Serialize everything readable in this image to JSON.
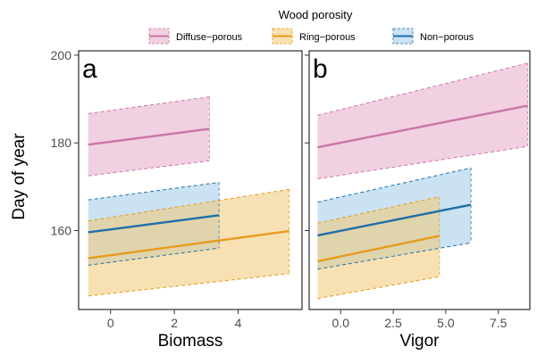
{
  "legend": {
    "title": "Wood porosity",
    "items": [
      {
        "label": "Diffuse−porous",
        "fill": "#e6a9c8",
        "line": "#c977a6"
      },
      {
        "label": "Ring−porous",
        "fill": "#f0c872",
        "line": "#e89a1c"
      },
      {
        "label": "Non−porous",
        "fill": "#9ecbe6",
        "line": "#1f6fa8"
      }
    ]
  },
  "y_axis_title": "Day of year",
  "colors": {
    "diffuse_fill": "#e6a9c8",
    "diffuse_line": "#c977a6",
    "ring_fill": "#f0c872",
    "ring_line": "#e89a1c",
    "non_fill": "#9ecbe6",
    "non_line": "#1f6fa8"
  },
  "chart_data": [
    {
      "type": "line",
      "panel": "a",
      "xlabel": "Biomass",
      "ylabel": "Day of year",
      "xlim": [
        -1,
        6
      ],
      "ylim": [
        142,
        201
      ],
      "xticks": [
        0,
        2,
        4
      ],
      "yticks": [
        160,
        180,
        200
      ],
      "series": [
        {
          "name": "Diffuse−porous",
          "color": "#c977a6",
          "fill": "#e6a9c8",
          "x": [
            -0.7,
            3.1
          ],
          "y": [
            179.6,
            183.2
          ],
          "lower": [
            172.5,
            175.9
          ],
          "upper": [
            186.7,
            190.5
          ]
        },
        {
          "name": "Non−porous",
          "color": "#1f6fa8",
          "fill": "#9ecbe6",
          "x": [
            -0.7,
            3.4
          ],
          "y": [
            159.6,
            163.5
          ],
          "lower": [
            152.1,
            156.0
          ],
          "upper": [
            167.0,
            171.0
          ]
        },
        {
          "name": "Ring−porous",
          "color": "#e89a1c",
          "fill": "#f0c872",
          "x": [
            -0.7,
            5.6
          ],
          "y": [
            153.7,
            159.9
          ],
          "lower": [
            145.1,
            150.2
          ],
          "upper": [
            162.2,
            169.4
          ]
        }
      ]
    },
    {
      "type": "line",
      "panel": "b",
      "xlabel": "Vigor",
      "ylabel": "Day of year",
      "xlim": [
        -1.5,
        9.0
      ],
      "ylim": [
        142,
        201
      ],
      "xticks": [
        0.0,
        2.5,
        5.0,
        7.5
      ],
      "yticks": [
        160,
        180,
        200
      ],
      "series": [
        {
          "name": "Diffuse−porous",
          "color": "#c977a6",
          "fill": "#e6a9c8",
          "x": [
            -1.1,
            8.9
          ],
          "y": [
            179.0,
            188.5
          ],
          "lower": [
            171.8,
            179.2
          ],
          "upper": [
            186.3,
            198.2
          ]
        },
        {
          "name": "Non−porous",
          "color": "#1f6fa8",
          "fill": "#9ecbe6",
          "x": [
            -1.1,
            6.2
          ],
          "y": [
            158.9,
            165.9
          ],
          "lower": [
            151.2,
            157.2
          ],
          "upper": [
            166.5,
            174.3
          ]
        },
        {
          "name": "Ring−porous",
          "color": "#e89a1c",
          "fill": "#f0c872",
          "x": [
            -1.1,
            4.7
          ],
          "y": [
            153.0,
            158.8
          ],
          "lower": [
            144.5,
            149.5
          ],
          "upper": [
            161.7,
            167.7
          ]
        }
      ]
    }
  ]
}
